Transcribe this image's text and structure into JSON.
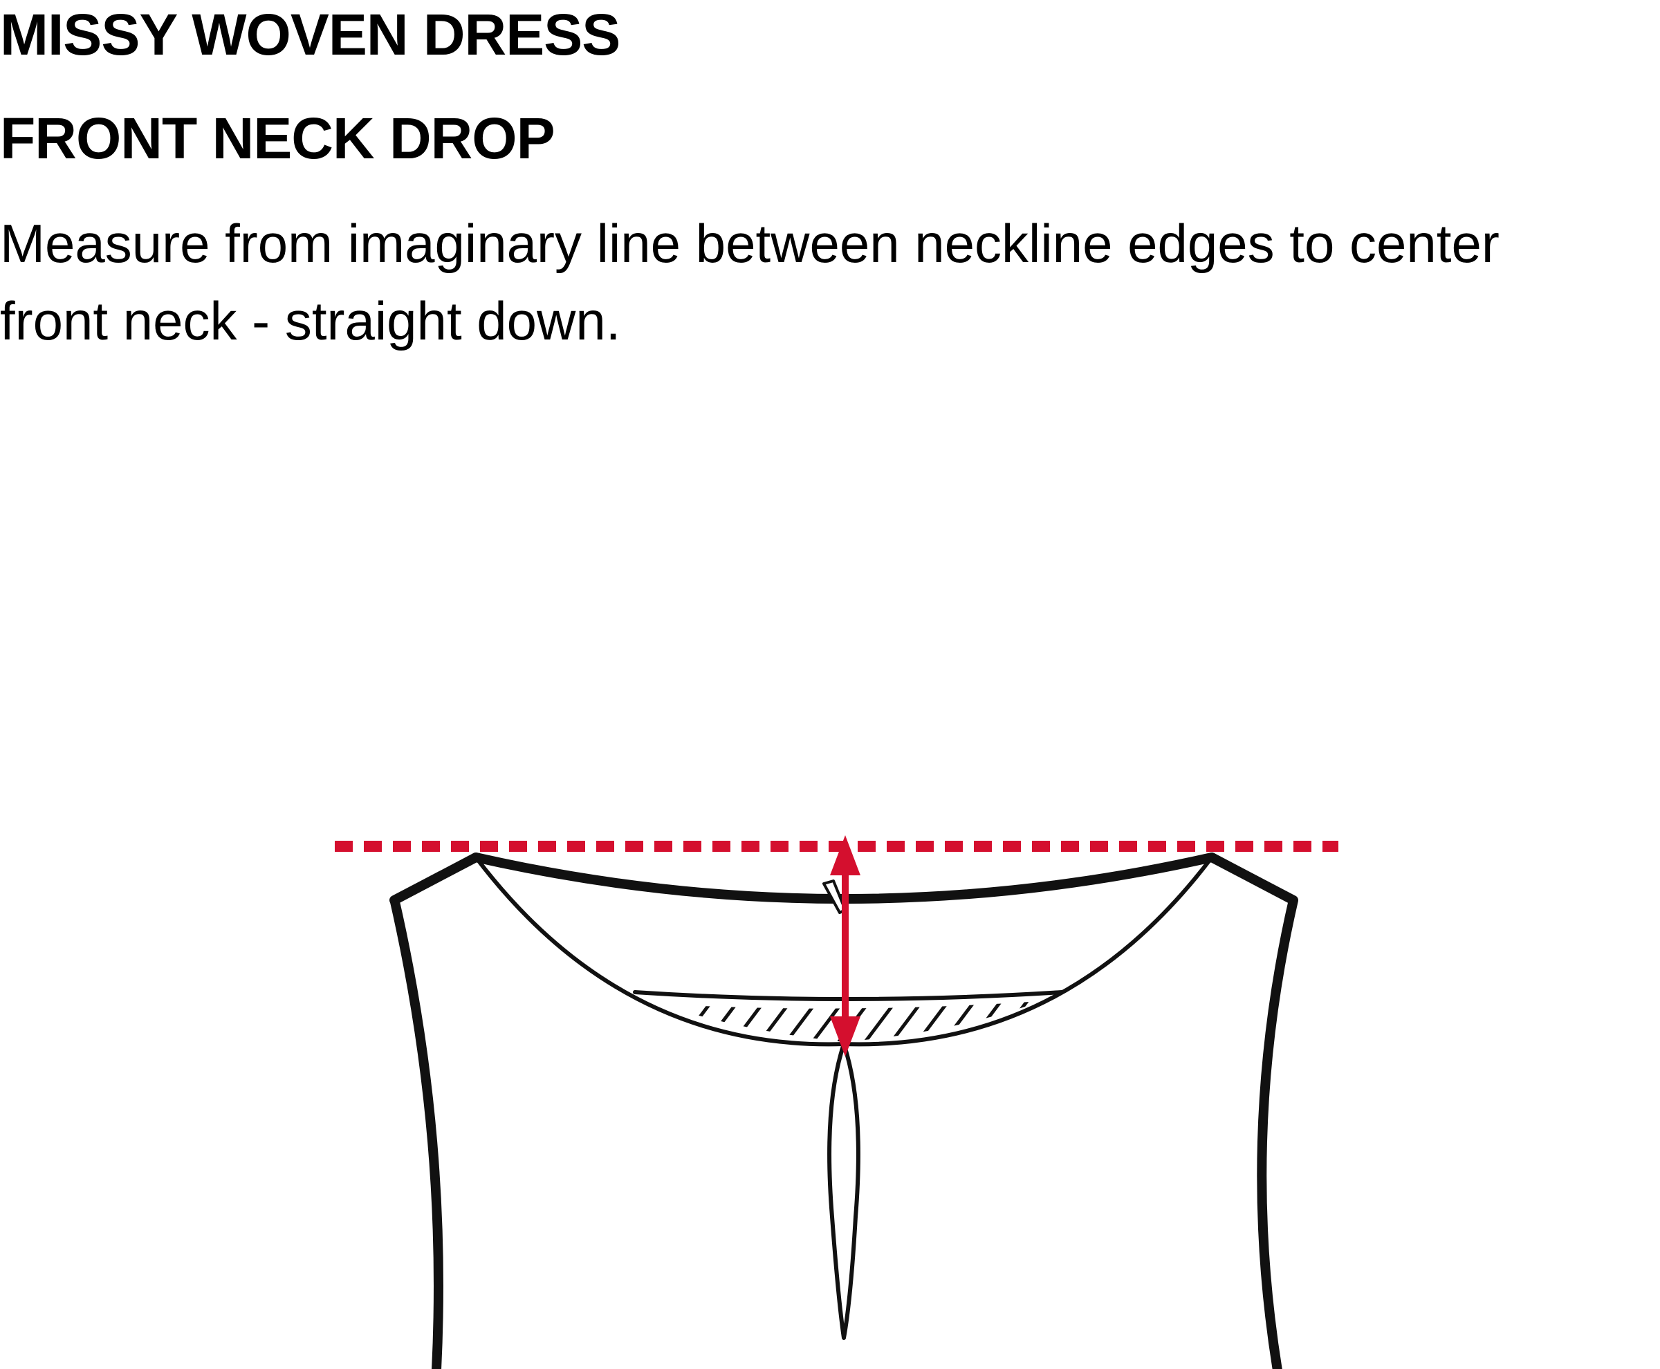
{
  "header": {
    "title": "MISSY WOVEN DRESS",
    "subtitle": "FRONT NECK DROP",
    "description": "Measure from imaginary line between neckline edges to center front neck - straight down."
  },
  "colors": {
    "measure_line": "#d40f2e",
    "garment_outline": "#111111",
    "background": "#ffffff"
  },
  "diagram": {
    "subject": "front neckline of woven dress with center front placket",
    "measurement": "front neck drop"
  }
}
